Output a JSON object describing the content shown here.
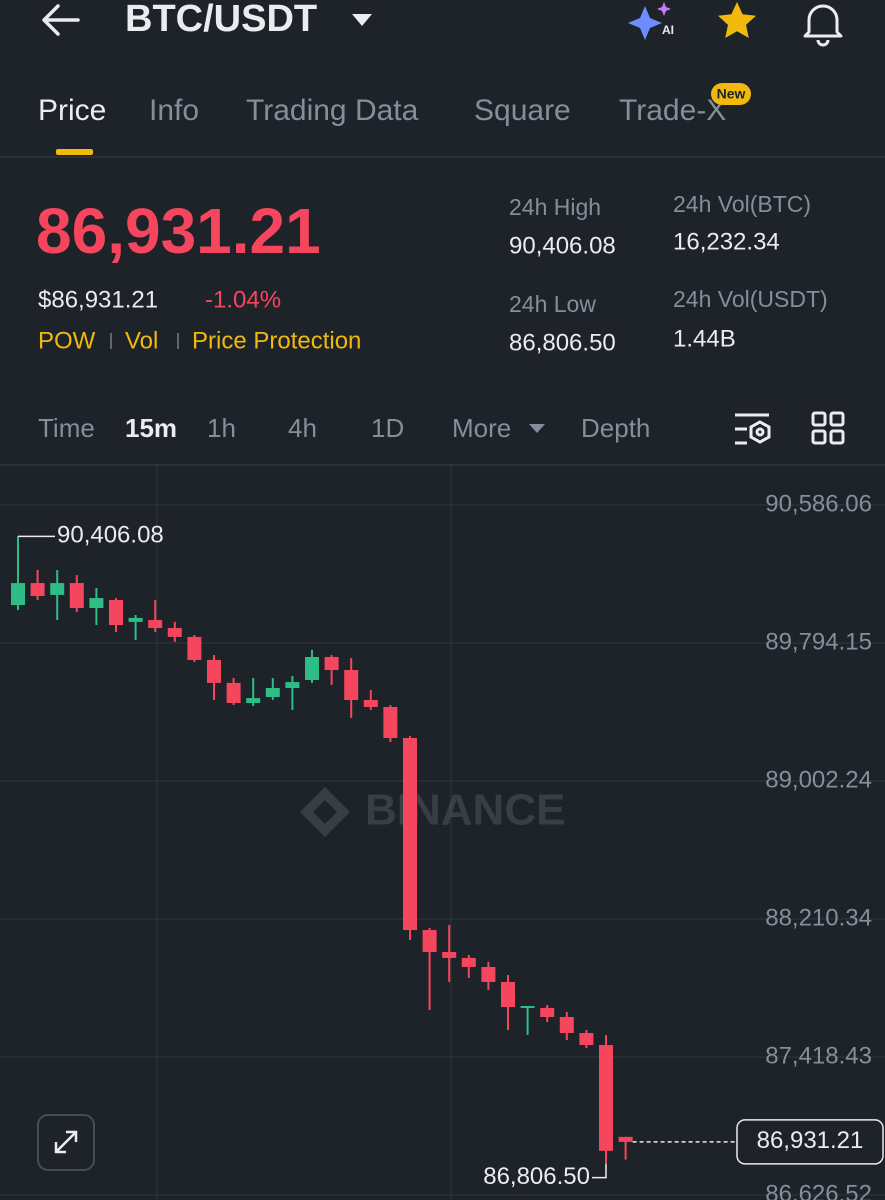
{
  "header": {
    "title": "BTC/USDT"
  },
  "tabs": {
    "items": [
      "Price",
      "Info",
      "Trading Data",
      "Square",
      "Trade-X"
    ],
    "badge": "New"
  },
  "ticker": {
    "last": "86,931.21",
    "fiat": "$86,931.21",
    "change": "-1.04%",
    "tags": [
      "POW",
      "Vol",
      "Price Protection"
    ]
  },
  "stats": [
    {
      "label": "24h High",
      "value": "90,406.08"
    },
    {
      "label": "24h Vol(BTC)",
      "value": "16,232.34"
    },
    {
      "label": "24h Low",
      "value": "86,806.50"
    },
    {
      "label": "24h Vol(USDT)",
      "value": "1.44B"
    }
  ],
  "intervals": {
    "items": [
      "Time",
      "15m",
      "1h",
      "4h",
      "1D",
      "More",
      "Depth"
    ]
  },
  "watermark": "BINANCE",
  "chart_data": {
    "type": "candlestick",
    "open": [
      90012,
      90138,
      90070,
      90138,
      89995,
      90041,
      89915,
      89926,
      89880,
      89829,
      89697,
      89565,
      89450,
      89484,
      89536,
      89582,
      89714,
      89639,
      89467,
      89427,
      89249,
      88147,
      88021,
      87987,
      87935,
      87849,
      87700,
      87700,
      87648,
      87556,
      87487,
      86960
    ],
    "high": [
      90406.08,
      90213,
      90213,
      90184,
      90110,
      90052,
      89955,
      90041,
      89915,
      89840,
      89725,
      89593,
      89593,
      89593,
      89605,
      89754,
      89725,
      89708,
      89524,
      89438,
      89260,
      88159,
      88176,
      88004,
      87964,
      87889,
      87711,
      87717,
      87677,
      87573,
      87545,
      86960
    ],
    "low": [
      89983,
      90041,
      89926,
      89972,
      89897,
      89857,
      89811,
      89857,
      89800,
      89685,
      89467,
      89438,
      89433,
      89467,
      89410,
      89565,
      89553,
      89364,
      89410,
      89226,
      88090,
      87688,
      87849,
      87872,
      87803,
      87573,
      87545,
      87619,
      87516,
      87470,
      86806.5,
      86830
    ],
    "close": [
      90138,
      90064,
      90138,
      89995,
      90052,
      89897,
      89938,
      89880,
      89829,
      89697,
      89565,
      89450,
      89478,
      89536,
      89570,
      89714,
      89639,
      89467,
      89427,
      89249,
      88147,
      88021,
      87987,
      87935,
      87849,
      87705,
      87711,
      87648,
      87556,
      87487,
      86880,
      86931.21
    ],
    "up_color": "#2ebd85",
    "down_color": "#f6465d",
    "ylim": [
      86597.8,
      90815.6
    ],
    "yticks": [
      {
        "value": 90586.06,
        "label": "90,586.06"
      },
      {
        "value": 89794.15,
        "label": "89,794.15"
      },
      {
        "value": 89002.24,
        "label": "89,002.24"
      },
      {
        "value": 88210.34,
        "label": "88,210.34"
      },
      {
        "value": 87418.43,
        "label": "87,418.43"
      },
      {
        "value": 86626.52,
        "label": "86,626.52"
      }
    ],
    "grid": true,
    "high_label": {
      "value": 90406.08,
      "label": "90,406.08"
    },
    "low_label": {
      "value": 86806.5,
      "label": "86,806.50"
    },
    "last_price": {
      "value": 86931.21,
      "label": "86,931.21"
    }
  }
}
